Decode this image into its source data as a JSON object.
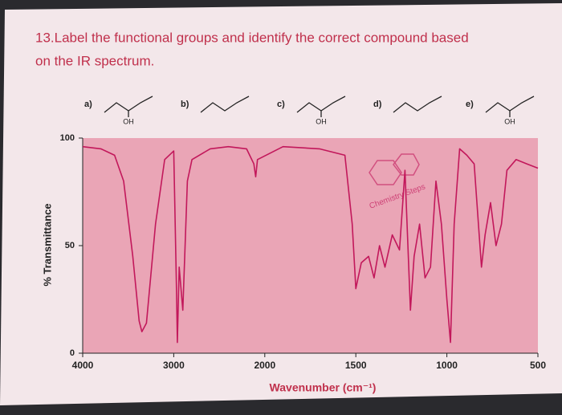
{
  "question": "13.Label the functional groups and identify the correct compound based on the IR spectrum.",
  "compounds": [
    {
      "label": "a)",
      "substituent": "OH"
    },
    {
      "label": "b)"
    },
    {
      "label": "c)",
      "substituent": "OH"
    },
    {
      "label": "d)"
    },
    {
      "label": "e)",
      "substituent": "OH"
    }
  ],
  "watermark": "Chemistry Steps",
  "chart_data": {
    "type": "line",
    "xlabel": "Wavenumber (cm⁻¹)",
    "ylabel": "% Transmittance",
    "color": "#c2185b",
    "x": [
      4000,
      3800,
      3650,
      3550,
      3450,
      3380,
      3350,
      3300,
      3200,
      3100,
      3000,
      2970,
      2960,
      2940,
      2900,
      2850,
      2800,
      2600,
      2400,
      2200,
      2120,
      2100,
      2080,
      1900,
      1700,
      1560,
      1520,
      1500,
      1470,
      1430,
      1400,
      1370,
      1340,
      1300,
      1260,
      1230,
      1200,
      1180,
      1150,
      1120,
      1090,
      1060,
      1030,
      1000,
      980,
      960,
      930,
      890,
      850,
      810,
      790,
      760,
      730,
      700,
      670,
      620,
      560,
      500
    ],
    "values": [
      96,
      95,
      92,
      80,
      45,
      15,
      10,
      14,
      60,
      90,
      94,
      30,
      5,
      40,
      20,
      80,
      90,
      95,
      96,
      95,
      88,
      82,
      90,
      96,
      95,
      92,
      60,
      30,
      42,
      45,
      35,
      50,
      40,
      55,
      48,
      85,
      20,
      45,
      60,
      35,
      40,
      80,
      60,
      25,
      5,
      60,
      95,
      92,
      88,
      40,
      55,
      70,
      50,
      60,
      85,
      90,
      88,
      86
    ],
    "xlim": [
      4000,
      500
    ],
    "xticks": [
      4000,
      3000,
      2000,
      1500,
      1000,
      500
    ],
    "ylim": [
      0,
      100
    ],
    "yticks": [
      0,
      50,
      100
    ]
  }
}
